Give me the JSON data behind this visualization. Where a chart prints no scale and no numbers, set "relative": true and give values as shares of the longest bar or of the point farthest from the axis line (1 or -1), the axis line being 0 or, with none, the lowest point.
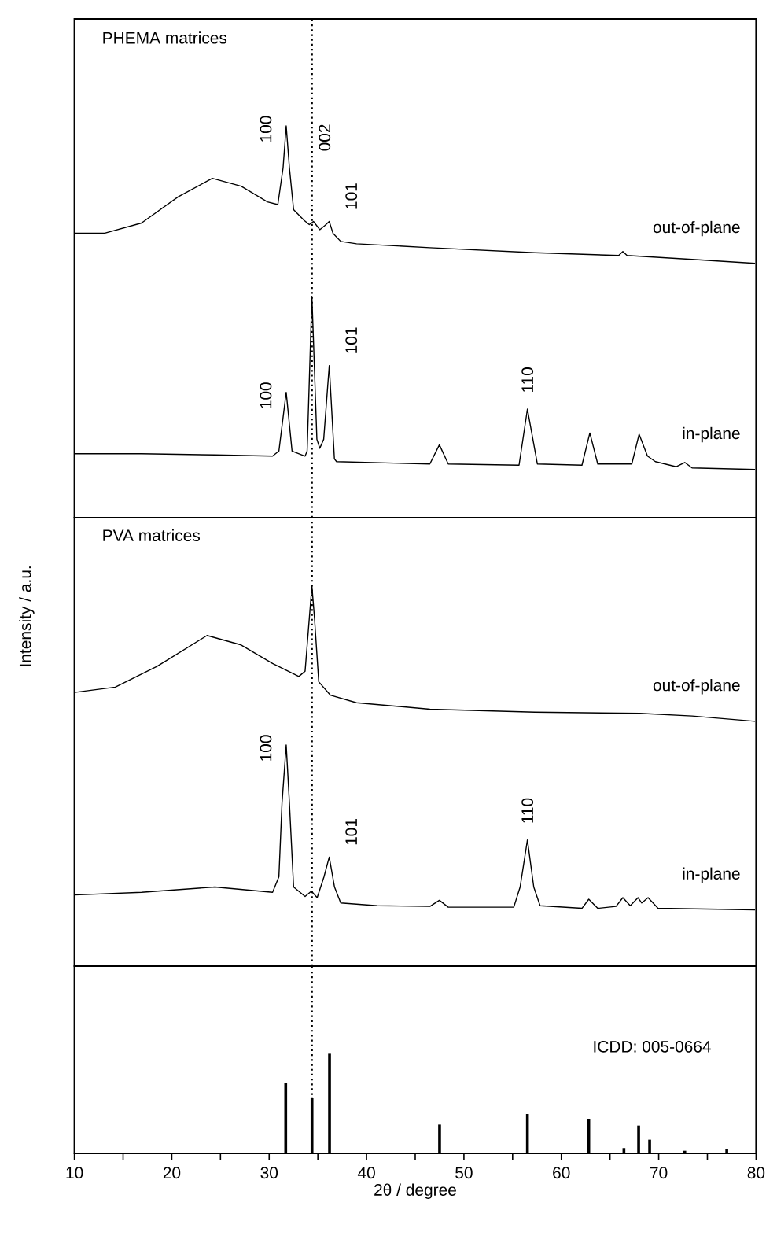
{
  "chart_data": [
    {
      "type": "line",
      "title": "PHEMA matrices",
      "relative": true,
      "xlim": [
        10,
        80
      ],
      "tick_labels": false,
      "ref_lines": [
        {
          "axis": "x",
          "value": 34.4,
          "line_style": "dotted"
        }
      ],
      "series": [
        {
          "name": "out-of-plane",
          "color": "#000000",
          "x": [
            10,
            13.12,
            16.89,
            20.66,
            24.16,
            27.12,
            29.82,
            30.89,
            31.43,
            31.75,
            32.08,
            32.51,
            33.58,
            34.12,
            34.55,
            35.2,
            35.74,
            36.17,
            36.55,
            37.35,
            38.97,
            46.5,
            57.28,
            65.89,
            66.32,
            66.75,
            73.43,
            79.89
          ],
          "values": [
            0.726,
            0.726,
            0.752,
            0.819,
            0.866,
            0.846,
            0.806,
            0.799,
            0.893,
            1,
            0.893,
            0.786,
            0.759,
            0.748,
            0.756,
            0.735,
            0.746,
            0.756,
            0.726,
            0.705,
            0.699,
            0.689,
            0.676,
            0.669,
            0.679,
            0.669,
            0.659,
            0.649
          ]
        },
        {
          "name": "in-plane",
          "color": "#000000",
          "x": [
            10,
            16.89,
            24.43,
            30.35,
            31.0,
            31.75,
            32.35,
            33.69,
            33.9,
            34.39,
            34.9,
            35.2,
            35.6,
            36.17,
            36.7,
            36.92,
            46.5,
            47.48,
            48.39,
            55.66,
            56.52,
            57.54,
            62.12,
            62.93,
            63.74,
            67.24,
            67.99,
            68.85,
            69.66,
            71.81,
            72.68,
            73.43,
            79.89
          ],
          "values": [
            0.163,
            0.163,
            0.16,
            0.157,
            0.17,
            0.32,
            0.17,
            0.157,
            0.17,
            0.565,
            0.2,
            0.177,
            0.2,
            0.388,
            0.15,
            0.143,
            0.137,
            0.186,
            0.137,
            0.134,
            0.277,
            0.137,
            0.134,
            0.216,
            0.137,
            0.137,
            0.213,
            0.157,
            0.143,
            0.13,
            0.141,
            0.127,
            0.123
          ]
        }
      ],
      "annotations": [
        {
          "text": "100",
          "x": 31.75,
          "y": 1
        },
        {
          "text": "002",
          "x": 34.4,
          "y": 0.93
        },
        {
          "text": "101",
          "x": 36.17,
          "y": 0.756
        },
        {
          "text": "100",
          "x": 31.75,
          "y": 0.32
        },
        {
          "text": "101",
          "x": 36.17,
          "y": 0.388
        },
        {
          "text": "110",
          "x": 56.52,
          "y": 0.277
        }
      ]
    },
    {
      "type": "line",
      "title": "PVA matrices",
      "relative": true,
      "xlim": [
        10,
        80
      ],
      "tick_labels": false,
      "ylabel": "Intensity / a.u.",
      "ref_lines": [
        {
          "axis": "x",
          "value": 34.4,
          "line_style": "dotted"
        }
      ],
      "series": [
        {
          "name": "out-of-plane",
          "color": "#000000",
          "x": [
            10,
            14.2,
            18.51,
            23.62,
            27.12,
            30.35,
            33.05,
            33.69,
            34.12,
            34.39,
            34.66,
            35.09,
            36.28,
            38.97,
            46.51,
            57.28,
            68.05,
            73.43,
            79.89
          ],
          "values": [
            0.72,
            0.734,
            0.789,
            0.87,
            0.845,
            0.796,
            0.762,
            0.776,
            0.914,
            1,
            0.914,
            0.748,
            0.713,
            0.693,
            0.676,
            0.668,
            0.665,
            0.658,
            0.644
          ]
        },
        {
          "name": "in-plane",
          "color": "#000000",
          "x": [
            10,
            16.89,
            24.43,
            30.35,
            31.0,
            31.32,
            31.75,
            32.08,
            32.51,
            33.69,
            34.34,
            34.93,
            35.63,
            36.17,
            36.71,
            37.35,
            41.12,
            46.51,
            47.48,
            48.39,
            55.12,
            55.77,
            56.52,
            57.17,
            57.82,
            62.12,
            62.82,
            63.74,
            65.62,
            66.32,
            67.08,
            67.88,
            68.26,
            68.91,
            69.93,
            79.89
          ],
          "values": [
            0.187,
            0.194,
            0.208,
            0.194,
            0.235,
            0.429,
            0.582,
            0.429,
            0.208,
            0.183,
            0.197,
            0.18,
            0.235,
            0.287,
            0.208,
            0.166,
            0.159,
            0.157,
            0.173,
            0.155,
            0.155,
            0.208,
            0.332,
            0.208,
            0.159,
            0.152,
            0.176,
            0.152,
            0.157,
            0.18,
            0.159,
            0.18,
            0.166,
            0.18,
            0.152,
            0.148
          ]
        }
      ],
      "annotations": [
        {
          "text": "100",
          "x": 31.75,
          "y": 0.582
        },
        {
          "text": "101",
          "x": 36.17,
          "y": 0.287
        },
        {
          "text": "110",
          "x": 56.52,
          "y": 0.332
        }
      ]
    },
    {
      "type": "bar",
      "title": "ICDD: 005-0664",
      "relative": true,
      "xlim": [
        10,
        80
      ],
      "tick_labels": "x",
      "xlabel": "2θ / degree",
      "color": "#000000",
      "xticks": [
        10,
        {
          "value": 15,
          "label": null
        },
        20,
        {
          "value": 25,
          "label": null
        },
        30,
        {
          "value": 35,
          "label": null
        },
        40,
        {
          "value": 45,
          "label": null
        },
        50,
        {
          "value": 55,
          "label": null
        },
        60,
        {
          "value": 65,
          "label": null
        },
        70,
        {
          "value": 75,
          "label": null
        },
        80
      ],
      "ref_lines": [
        {
          "axis": "x",
          "value": 34.4,
          "line_style": "dotted"
        }
      ],
      "x": [
        31.7,
        34.4,
        36.2,
        47.5,
        56.52,
        62.82,
        66.43,
        67.94,
        69.07,
        72.68,
        76.99
      ],
      "values": [
        0.711,
        0.553,
        1,
        0.289,
        0.395,
        0.342,
        0.053,
        0.279,
        0.137,
        0.026,
        0.042
      ]
    }
  ]
}
